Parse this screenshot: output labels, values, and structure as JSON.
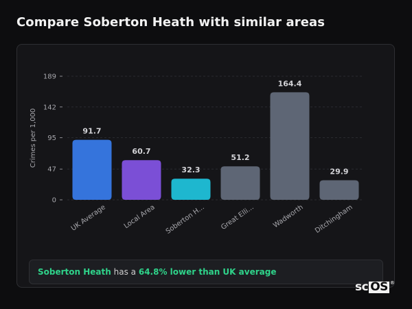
{
  "page": {
    "title": "Compare Soberton Heath with similar areas"
  },
  "summary": {
    "area_name": "Soberton Heath",
    "mid_text": "has a",
    "difference_text": "64.8% lower than UK average"
  },
  "logo": {
    "text_prefix": "sc",
    "text_boxed": "OS",
    "mark": "®"
  },
  "chart_data": {
    "type": "bar",
    "ylabel": "Crimes per 1,000",
    "xlabel": "",
    "ylim": [
      0,
      189
    ],
    "yticks": [
      0,
      47,
      95,
      142,
      189
    ],
    "grid": true,
    "categories": [
      "UK Average",
      "Local Area",
      "Soberton H...",
      "Great Elli...",
      "Wadworth",
      "Ditchingham"
    ],
    "values": [
      91.7,
      60.7,
      32.3,
      51.2,
      164.4,
      29.9
    ],
    "value_labels": [
      "91.7",
      "60.7",
      "32.3",
      "51.2",
      "164.4",
      "29.9"
    ],
    "colors": [
      "#3574dc",
      "#7b4fd6",
      "#1eb7cf",
      "#5e6675",
      "#5e6675",
      "#5e6675"
    ]
  }
}
